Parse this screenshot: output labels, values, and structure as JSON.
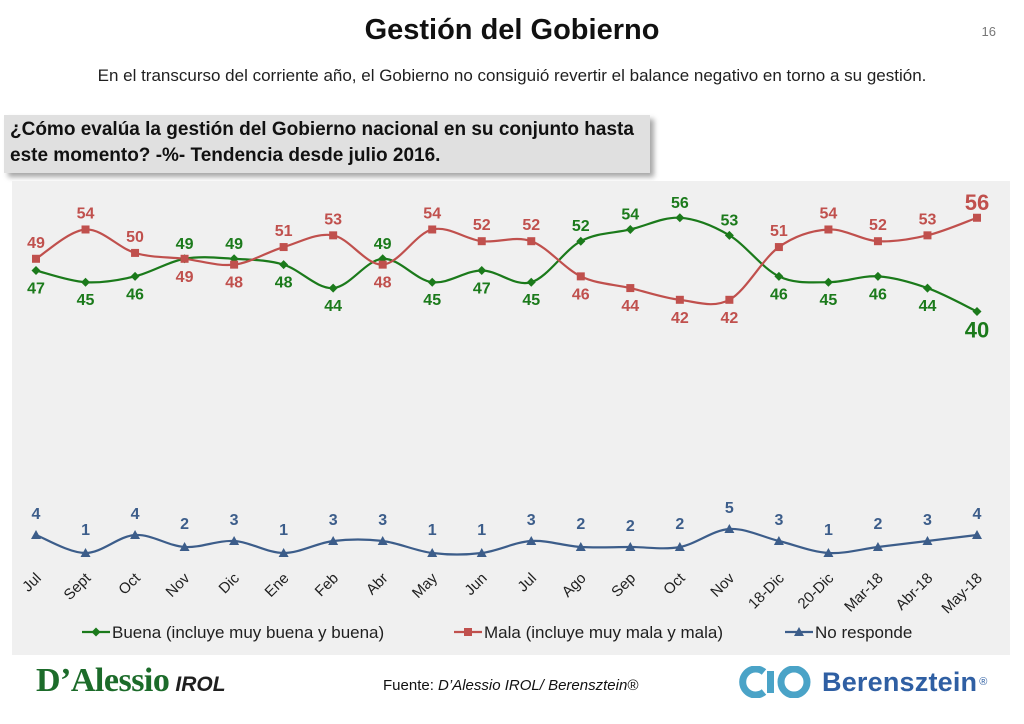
{
  "slide": {
    "title": "Gestión del Gobierno",
    "page_number": "16",
    "subtitle": "En el transcurso del corriente año, el Gobierno no consiguió revertir el balance negativo en torno a su gestión.",
    "question": "¿Cómo evalúa la gestión del Gobierno nacional en su conjunto hasta este momento? -%- Tendencia desde julio 2016.",
    "source_prefix": "Fuente: ",
    "source": "D’Alessio IROL/ Berensztein®",
    "logo_left_text": "D’Alessio",
    "logo_left_sub": "IROL",
    "logo_right_text": "Berensztein",
    "logo_right_reg": "®"
  },
  "chart_data": {
    "type": "line",
    "categories": [
      "Jul",
      "Sept",
      "Oct",
      "Nov",
      "Dic",
      "Ene",
      "Feb",
      "Abr",
      "May",
      "Jun",
      "Jul",
      "Ago",
      "Sep",
      "Oct",
      "Nov",
      "18-Dic",
      "20-Dic",
      "Mar-18",
      "Abr-18",
      "May-18"
    ],
    "ylim": [
      0,
      60
    ],
    "grid": false,
    "legend_position": "bottom",
    "series": [
      {
        "name": "Buena (incluye muy buena y buena)",
        "color": "#1b7a1b",
        "marker": "diamond",
        "values": [
          47,
          45,
          46,
          49,
          49,
          48,
          44,
          49,
          45,
          47,
          45,
          52,
          54,
          56,
          53,
          46,
          45,
          46,
          44,
          40
        ]
      },
      {
        "name": "Mala (incluye muy mala y mala)",
        "color": "#c0504d",
        "marker": "square",
        "values": [
          49,
          54,
          50,
          49,
          48,
          51,
          53,
          48,
          54,
          52,
          52,
          46,
          44,
          42,
          42,
          51,
          54,
          52,
          53,
          56
        ]
      },
      {
        "name": "No responde",
        "color": "#3c5d8a",
        "marker": "triangle",
        "values": [
          4,
          1,
          4,
          2,
          3,
          1,
          3,
          3,
          1,
          1,
          3,
          2,
          2,
          2,
          5,
          3,
          1,
          2,
          3,
          4
        ]
      }
    ]
  }
}
